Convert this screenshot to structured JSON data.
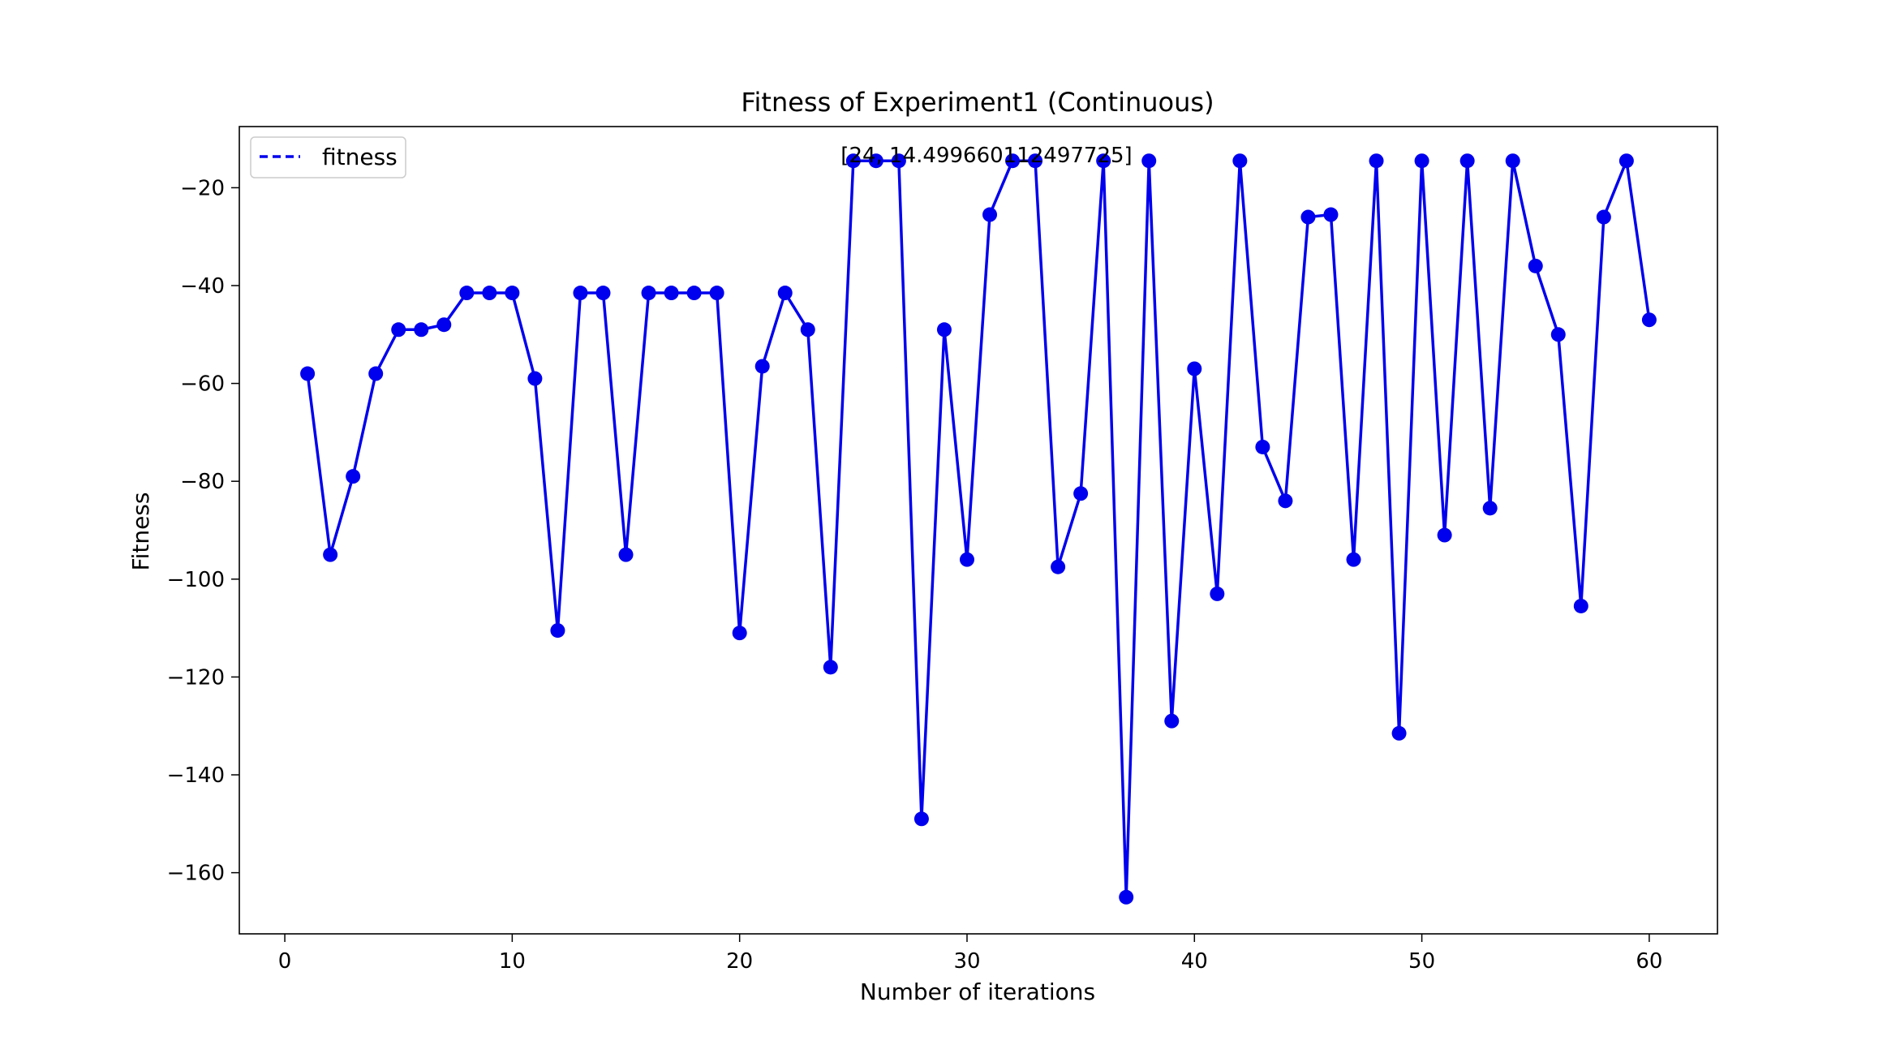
{
  "chart_data": {
    "type": "line",
    "title": "Fitness of Experiment1 (Continuous)",
    "xlabel": "Number of iterations",
    "ylabel": "Fitness",
    "xlim": [
      -2,
      63
    ],
    "ylim": [
      -172.5,
      -7.5
    ],
    "xticks": [
      0,
      10,
      20,
      30,
      40,
      50,
      60
    ],
    "yticks": [
      -20,
      -40,
      -60,
      -80,
      -100,
      -120,
      -140,
      -160
    ],
    "grid": false,
    "legend_position": "top-left",
    "annotation": "[24, 14.499660112497725]",
    "colors": {
      "series": "#0000ee"
    },
    "series": [
      {
        "name": "fitness",
        "x": [
          1,
          2,
          3,
          4,
          5,
          6,
          7,
          8,
          9,
          10,
          11,
          12,
          13,
          14,
          15,
          16,
          17,
          18,
          19,
          20,
          21,
          22,
          23,
          24,
          25,
          26,
          27,
          28,
          29,
          30,
          31,
          32,
          33,
          34,
          35,
          36,
          37,
          38,
          39,
          40,
          41,
          42,
          43,
          44,
          45,
          46,
          47,
          48,
          49,
          50,
          51,
          52,
          53,
          54,
          55,
          56,
          57,
          58,
          59,
          60
        ],
        "values": [
          -58,
          -95,
          -79,
          -58,
          -49,
          -49,
          -48,
          -41.5,
          -41.5,
          -41.5,
          -59,
          -110.5,
          -41.5,
          -41.5,
          -95,
          -41.5,
          -41.5,
          -41.5,
          -41.5,
          -111,
          -56.5,
          -41.5,
          -49,
          -118,
          -14.5,
          -14.5,
          -14.5,
          -149,
          -49,
          -96,
          -25.5,
          -14.5,
          -14.5,
          -97.5,
          -82.5,
          -14.5,
          -165,
          -14.5,
          -129,
          -57,
          -103,
          -14.5,
          -73,
          -84,
          -26,
          -25.5,
          -96,
          -14.5,
          -131.5,
          -14.5,
          -91,
          -14.5,
          -85.5,
          -14.5,
          -36,
          -50,
          -105.5,
          -26,
          -14.5,
          -47
        ]
      }
    ]
  }
}
